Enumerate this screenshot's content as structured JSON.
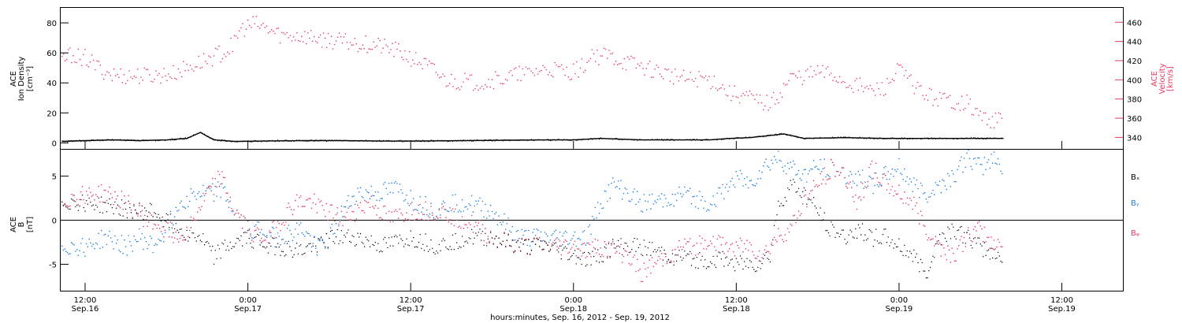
{
  "colors": {
    "density": "#000000",
    "velocity": "#e8385f",
    "bx": "#000000",
    "by": "#1f7fe0",
    "bz": "#e8385f"
  },
  "xaxis": {
    "title": "hours:minutes, Sep. 16, 2012 - Sep. 19, 2012",
    "ticks": [
      {
        "t": 12,
        "time": "12:00",
        "date": "Sep.16"
      },
      {
        "t": 24,
        "time": "0:00",
        "date": "Sep.17"
      },
      {
        "t": 36,
        "time": "12:00",
        "date": "Sep.17"
      },
      {
        "t": 48,
        "time": "0:00",
        "date": "Sep.18"
      },
      {
        "t": 60,
        "time": "12:00",
        "date": "Sep.18"
      },
      {
        "t": 72,
        "time": "0:00",
        "date": "Sep.19"
      },
      {
        "t": 84,
        "time": "12:00",
        "date": "Sep.19"
      }
    ]
  },
  "chart_data": [
    {
      "type": "scatter",
      "title": "",
      "xlabel": "hours:minutes, Sep. 16, 2012 - Sep. 19, 2012",
      "xunit": "hours since 2012-09-16 00:00",
      "xlim": [
        10.2,
        88.5
      ],
      "left_axis": {
        "label_lines": [
          "ACE",
          "Ion Density",
          "[cm⁻³]"
        ],
        "ylim": [
          -4,
          90
        ],
        "ticks": [
          0,
          20,
          40,
          60,
          80
        ]
      },
      "right_axis": {
        "label_lines": [
          "ACE",
          "Velocity",
          "[km/s]"
        ],
        "ylim": [
          328,
          475
        ],
        "ticks": [
          340,
          360,
          380,
          400,
          420,
          440,
          460
        ]
      },
      "series": [
        {
          "axis": "left",
          "x": [
            10.3,
            12,
            14,
            16,
            18,
            19.5,
            20.5,
            21.5,
            23,
            25,
            28,
            31,
            34,
            37,
            40,
            43,
            46,
            48,
            50,
            53,
            56,
            58,
            59.5,
            61,
            62.5,
            63.5,
            65,
            68,
            71,
            74,
            77,
            79.7
          ],
          "y": [
            1,
            1.5,
            2,
            1.5,
            2,
            3,
            7,
            2,
            1,
            1.2,
            1.5,
            1.5,
            1.2,
            1.3,
            1.5,
            1.8,
            2,
            2,
            3,
            2,
            2,
            2,
            3,
            3.5,
            5,
            6,
            3,
            3.5,
            3,
            3,
            3,
            3
          ]
        },
        {
          "axis": "right",
          "x": [
            10.3,
            11,
            12,
            13,
            14,
            15,
            16,
            17,
            18.5,
            19.5,
            20.5,
            21.5,
            22.5,
            23.5,
            24.5,
            25.5,
            26.5,
            27.5,
            29,
            30.5,
            32,
            33.5,
            35,
            36.5,
            37.5,
            38.5,
            39.5,
            40.5,
            41.5,
            42.5,
            43.5,
            44.5,
            45.5,
            46.5,
            47.5,
            48.5,
            49.5,
            50.5,
            51.5,
            52.5,
            53.5,
            54.5,
            55.5,
            56.5,
            57.5,
            58.5,
            59.5,
            60.5,
            61.5,
            62.5,
            63,
            64,
            65,
            66,
            67,
            68,
            69,
            70,
            71,
            72,
            73,
            74,
            75,
            76,
            77,
            78,
            79,
            79.7
          ],
          "y": [
            420,
            426,
            423,
            412,
            405,
            404,
            404,
            404,
            406,
            412,
            418,
            424,
            430,
            452,
            458,
            452,
            446,
            446,
            444,
            440,
            438,
            436,
            430,
            420,
            412,
            400,
            398,
            398,
            398,
            400,
            404,
            406,
            410,
            412,
            408,
            412,
            424,
            426,
            420,
            416,
            412,
            408,
            404,
            400,
            402,
            398,
            386,
            384,
            378,
            375,
            382,
            402,
            404,
            408,
            406,
            398,
            394,
            388,
            392,
            410,
            396,
            384,
            380,
            378,
            376,
            362,
            358,
            358
          ]
        }
      ]
    },
    {
      "type": "scatter",
      "title": "",
      "ylabel_lines": [
        "ACE",
        "B",
        "[nT]"
      ],
      "xlim": [
        10.2,
        88.5
      ],
      "ylim": [
        -8,
        8
      ],
      "yticks": [
        -5,
        0,
        5
      ],
      "zero_line": true,
      "series": [
        {
          "name": "Bx",
          "x": [
            10.3,
            12,
            14,
            16,
            17,
            18,
            19,
            20.5,
            21.5,
            22.5,
            24,
            26,
            28,
            30,
            32,
            34,
            36,
            38,
            40,
            42,
            44,
            46,
            48,
            49,
            50,
            51,
            53,
            55,
            57,
            59,
            60.5,
            61.5,
            62.5,
            63,
            64,
            65,
            66,
            67,
            68,
            69,
            70,
            71,
            72,
            73,
            74,
            75,
            76,
            77,
            78,
            79,
            79.7
          ],
          "y": [
            2,
            2,
            1.5,
            1,
            1,
            0,
            -1,
            -2,
            -4,
            -3,
            -2,
            -3,
            -3.5,
            -2,
            -2,
            -3,
            -2,
            -3,
            -2,
            -2,
            -3,
            -3,
            -4,
            -4.5,
            -4,
            -3,
            -3,
            -4,
            -4.5,
            -4.5,
            -5,
            -5,
            -4,
            1,
            4,
            3,
            1,
            -1,
            -2,
            -1,
            -2,
            -2,
            -3,
            -4,
            -6,
            -2,
            -1,
            -2,
            -3,
            -4,
            -4
          ]
        },
        {
          "name": "By",
          "x": [
            10.3,
            11,
            12,
            13.5,
            15,
            16,
            17,
            18,
            19,
            20,
            21,
            22,
            23,
            24,
            25,
            26,
            28,
            29,
            30,
            31,
            32,
            33.5,
            35,
            36.5,
            38,
            39,
            40,
            42,
            44,
            46,
            47,
            48,
            49,
            50,
            51,
            52,
            53,
            54,
            56,
            58,
            59,
            60,
            61,
            62,
            63,
            64,
            65,
            66,
            67,
            68,
            69,
            70,
            71,
            72,
            73,
            74,
            75,
            76,
            77,
            78,
            79,
            79.7
          ],
          "y": [
            -3,
            -3,
            -3,
            -2,
            -3,
            -2,
            -3,
            -1,
            2,
            3,
            3,
            3.5,
            1,
            -1,
            -1,
            -2,
            -1,
            -3,
            -2,
            1,
            3,
            3,
            3.5,
            2,
            1,
            2,
            2,
            1,
            -2,
            -2,
            -2,
            -2,
            -2,
            2,
            4,
            3,
            2,
            2,
            3,
            2,
            3,
            5,
            4,
            6,
            7,
            6,
            5,
            6,
            6,
            5,
            5,
            4,
            5,
            6,
            4,
            3,
            4,
            5,
            7,
            6,
            7,
            6
          ]
        },
        {
          "name": "Bz",
          "x": [
            10.3,
            11,
            12,
            13.5,
            15,
            16.5,
            18,
            19,
            20,
            21,
            22,
            23,
            24,
            25,
            26,
            27.5,
            29,
            30,
            31,
            32,
            33,
            34.5,
            36,
            38,
            40,
            42,
            44,
            46,
            48,
            49,
            50,
            52,
            53,
            55,
            56,
            57,
            58,
            59,
            60,
            61,
            62,
            63,
            64,
            65,
            66,
            67,
            68,
            69,
            70,
            71,
            72,
            73,
            74,
            75,
            76,
            77,
            78,
            79,
            79.7
          ],
          "y": [
            2,
            2.5,
            3,
            3,
            2,
            0,
            -1,
            -2,
            0,
            3,
            5,
            1,
            -1,
            -2,
            -1,
            2,
            2,
            1,
            0,
            1,
            2,
            0,
            1,
            1,
            0,
            -2,
            -3,
            -3,
            -3,
            -3.5,
            -3,
            -4,
            -6,
            -4,
            -3,
            -3,
            -2,
            -3,
            -3,
            -3,
            -4,
            -2,
            -1,
            2,
            4,
            6,
            5,
            2,
            6,
            4,
            3,
            2,
            -1,
            -3,
            -4,
            -2,
            -1,
            -3,
            -2
          ]
        }
      ],
      "legend": [
        "Bₓ",
        "Bᵧ",
        "Bᵩ"
      ]
    }
  ]
}
